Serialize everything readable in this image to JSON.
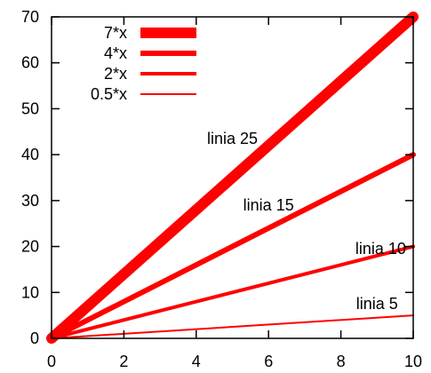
{
  "chart_data": {
    "type": "line",
    "title": "",
    "xlabel": "",
    "ylabel": "",
    "xlim": [
      0,
      10
    ],
    "ylim": [
      0,
      70
    ],
    "xticks": [
      0,
      2,
      4,
      6,
      8,
      10
    ],
    "yticks": [
      0,
      10,
      20,
      30,
      40,
      50,
      60,
      70
    ],
    "grid": false,
    "legend_position": "top-left",
    "series": [
      {
        "name": "7*x",
        "x": [
          0,
          10
        ],
        "y": [
          0,
          70
        ],
        "color": "#ff0000",
        "line_width_label": "linia 25"
      },
      {
        "name": "4*x",
        "x": [
          0,
          10
        ],
        "y": [
          0,
          40
        ],
        "color": "#ff0000",
        "line_width_label": "linia 15"
      },
      {
        "name": "2*x",
        "x": [
          0,
          10
        ],
        "y": [
          0,
          20
        ],
        "color": "#ff0000",
        "line_width_label": "linia 10"
      },
      {
        "name": "0.5*x",
        "x": [
          0,
          10
        ],
        "y": [
          0,
          5
        ],
        "color": "#ff0000",
        "line_width_label": "linia 5"
      }
    ],
    "annotations": [
      {
        "text": "linia 25",
        "x": 5.0,
        "y": 43.5
      },
      {
        "text": "linia 15",
        "x": 6.0,
        "y": 29.0
      },
      {
        "text": "linia 10",
        "x": 9.1,
        "y": 19.5
      },
      {
        "text": "linia 5",
        "x": 9.0,
        "y": 7.5
      }
    ]
  }
}
